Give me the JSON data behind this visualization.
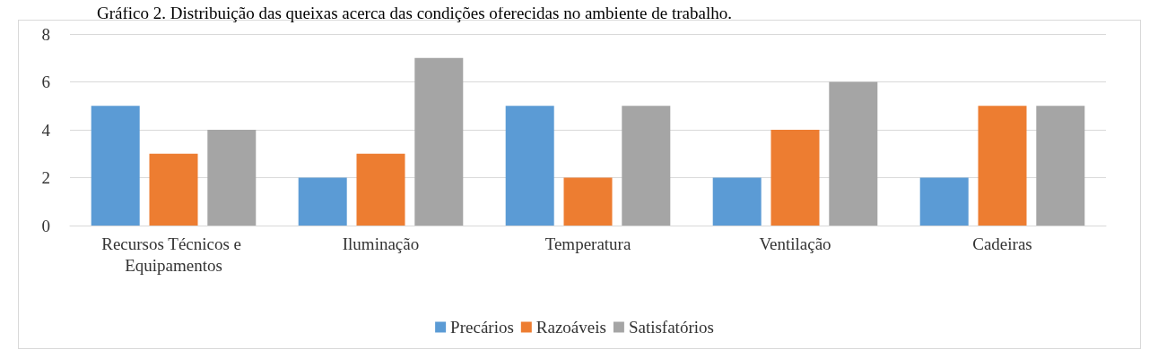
{
  "chart_data": {
    "type": "bar",
    "title": "Gráfico 2. Distribuição das queixas acerca das condições oferecidas no ambiente de trabalho.",
    "categories": [
      "Recursos Técnicos e Equipamentos",
      "Iluminação",
      "Temperatura",
      "Ventilação",
      "Cadeiras"
    ],
    "series": [
      {
        "name": "Precários",
        "color": "#5b9bd5",
        "values": [
          5,
          2,
          5,
          2,
          2
        ]
      },
      {
        "name": "Razoáveis",
        "color": "#ed7d31",
        "values": [
          3,
          3,
          2,
          4,
          5
        ]
      },
      {
        "name": "Satisfatórios",
        "color": "#a5a5a5",
        "values": [
          4,
          7,
          5,
          6,
          5
        ]
      }
    ],
    "ylim": [
      0,
      8
    ],
    "yticks": [
      0,
      2,
      4,
      6,
      8
    ],
    "grid": "y",
    "legend": "bottom"
  }
}
